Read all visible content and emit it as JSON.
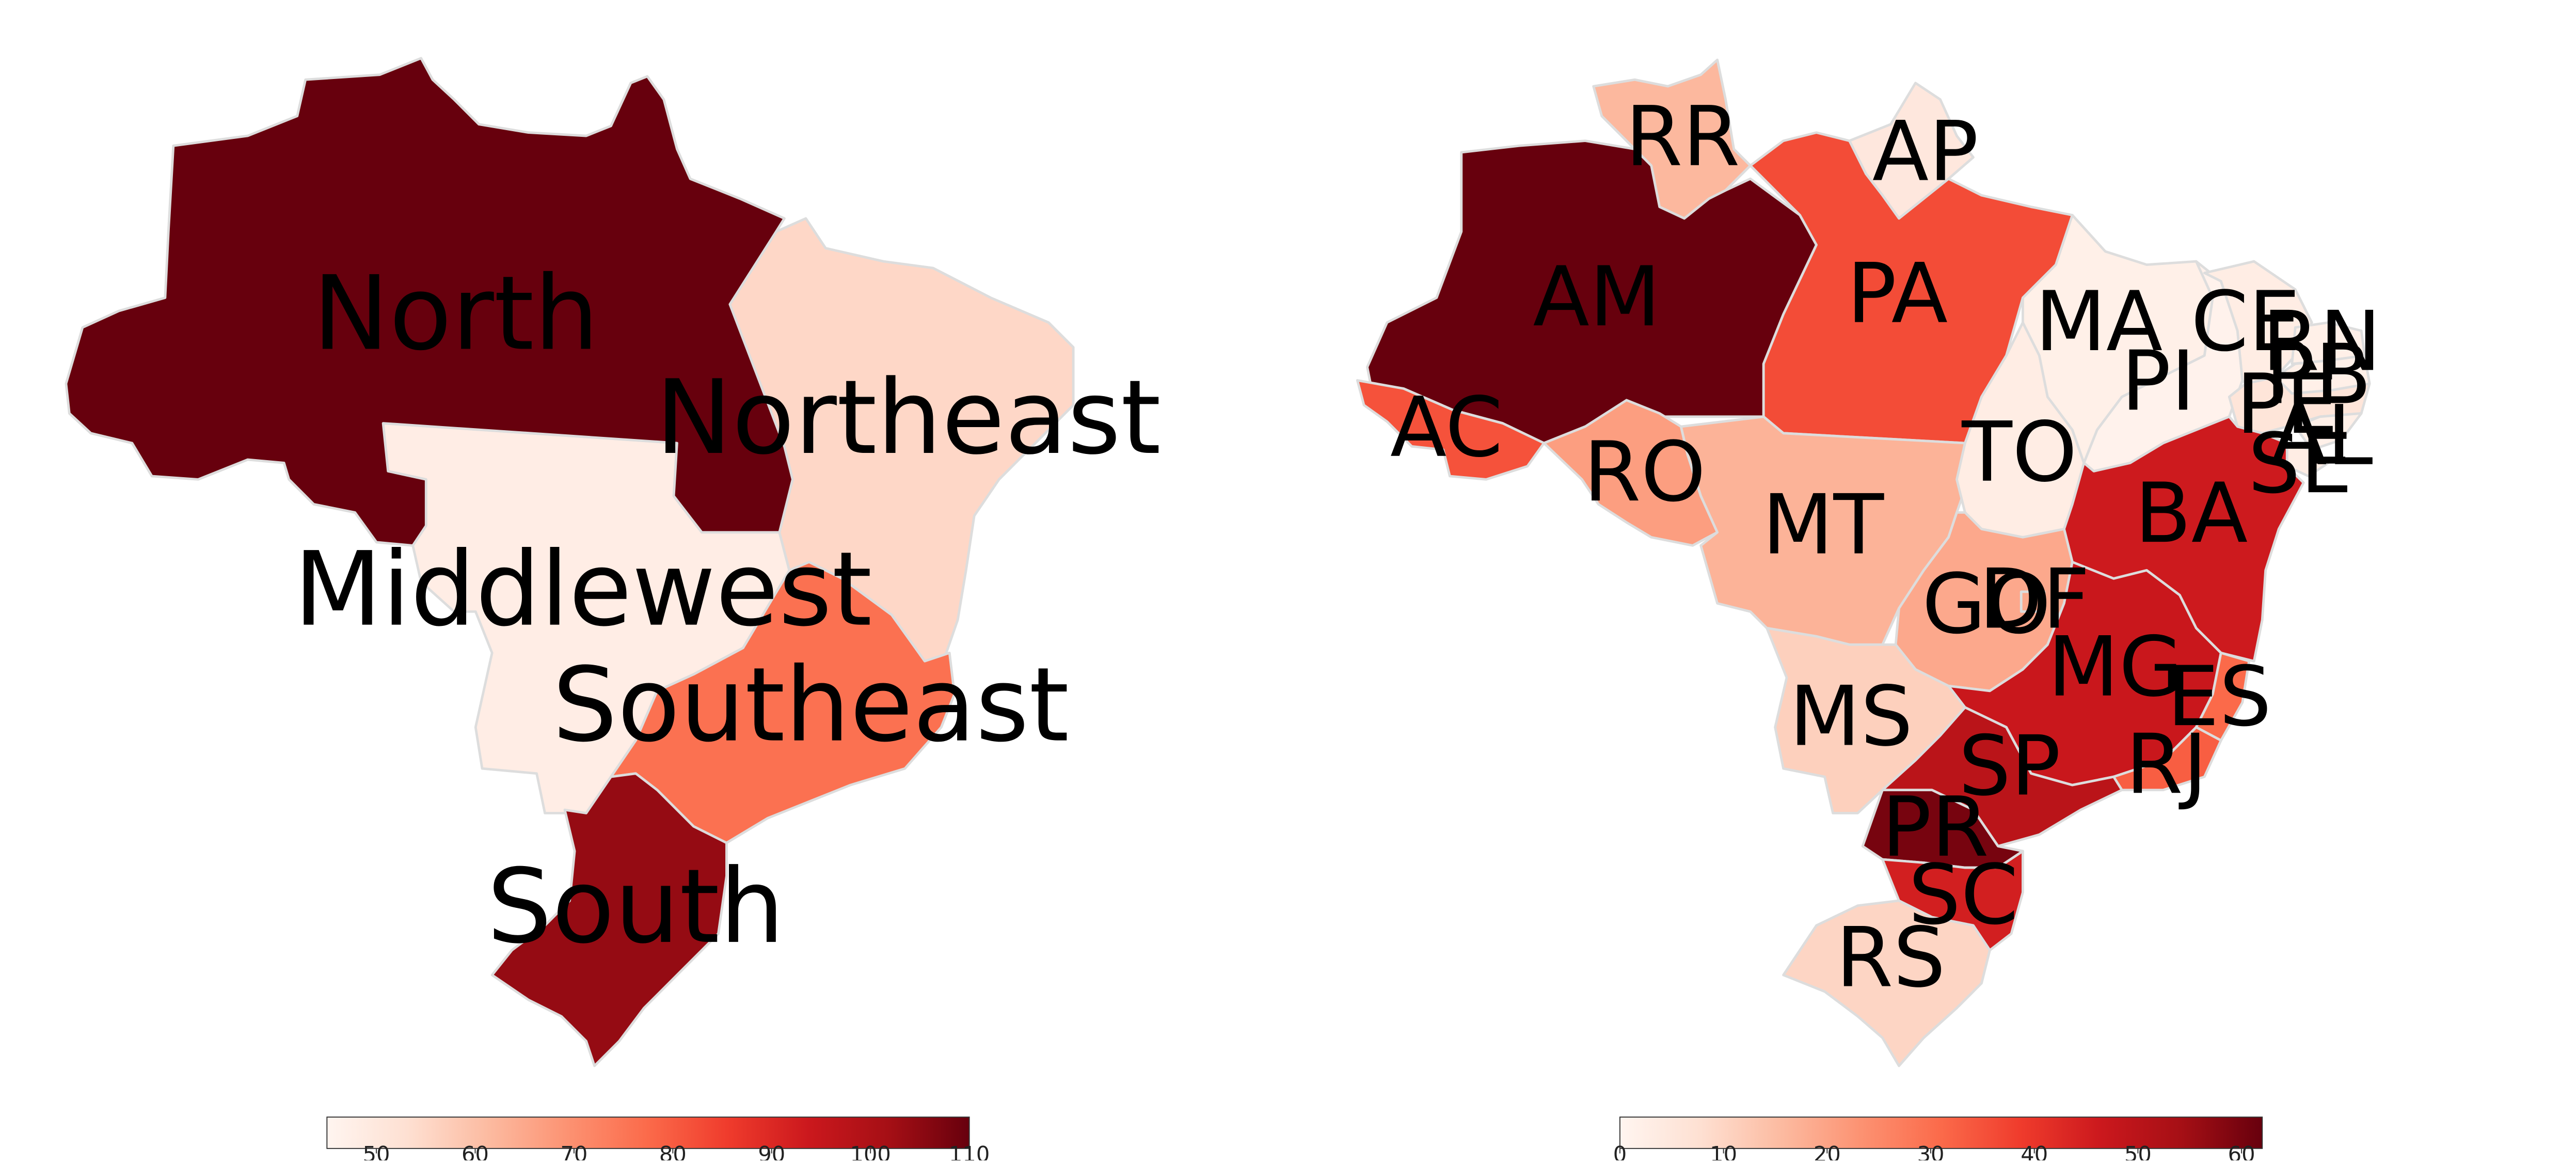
{
  "maps": [
    {
      "colorbar": {
        "min": 45,
        "max": 110,
        "ticks": [
          "50",
          "60",
          "70",
          "80",
          "90",
          "100",
          "110"
        ],
        "tick_values": [
          50,
          60,
          70,
          80,
          90,
          100,
          110
        ]
      },
      "regions": [
        {
          "id": "north",
          "label": "North",
          "value": 110
        },
        {
          "id": "northeast",
          "label": "Northeast",
          "value": 55
        },
        {
          "id": "middlewest",
          "label": "Middlewest",
          "value": 48
        },
        {
          "id": "southeast",
          "label": "Southeast",
          "value": 76
        },
        {
          "id": "south",
          "label": "South",
          "value": 104
        }
      ]
    },
    {
      "colorbar": {
        "min": 0,
        "max": 62,
        "ticks": [
          "0",
          "10",
          "20",
          "30",
          "40",
          "50",
          "60"
        ],
        "tick_values": [
          0,
          10,
          20,
          30,
          40,
          50,
          60
        ]
      },
      "states": [
        {
          "id": "RR",
          "label": "RR",
          "value": 16
        },
        {
          "id": "AP",
          "label": "AP",
          "value": 5
        },
        {
          "id": "AM",
          "label": "AM",
          "value": 62
        },
        {
          "id": "PA",
          "label": "PA",
          "value": 36
        },
        {
          "id": "AC",
          "label": "AC",
          "value": 35
        },
        {
          "id": "RO",
          "label": "RO",
          "value": 21
        },
        {
          "id": "MT",
          "label": "MT",
          "value": 17
        },
        {
          "id": "TO",
          "label": "TO",
          "value": 3
        },
        {
          "id": "MA",
          "label": "MA",
          "value": 2
        },
        {
          "id": "PI",
          "label": "PI",
          "value": 1
        },
        {
          "id": "CE",
          "label": "CE",
          "value": 3
        },
        {
          "id": "RN",
          "label": "RN",
          "value": 2
        },
        {
          "id": "PB",
          "label": "PB",
          "value": 2
        },
        {
          "id": "PE",
          "label": "PE",
          "value": 6
        },
        {
          "id": "AL",
          "label": "AL",
          "value": 2
        },
        {
          "id": "SE",
          "label": "SE",
          "value": 3
        },
        {
          "id": "BA",
          "label": "BA",
          "value": 46
        },
        {
          "id": "GO",
          "label": "GO",
          "value": 19
        },
        {
          "id": "DF",
          "label": "DF",
          "value": 19
        },
        {
          "id": "MG",
          "label": "MG",
          "value": 47
        },
        {
          "id": "ES",
          "label": "ES",
          "value": 31
        },
        {
          "id": "RJ",
          "label": "RJ",
          "value": 33
        },
        {
          "id": "MS",
          "label": "MS",
          "value": 11
        },
        {
          "id": "SP",
          "label": "SP",
          "value": 50
        },
        {
          "id": "PR",
          "label": "PR",
          "value": 60
        },
        {
          "id": "SC",
          "label": "SC",
          "value": 45
        },
        {
          "id": "RS",
          "label": "RS",
          "value": 10
        }
      ]
    }
  ],
  "colors": {
    "ramp": [
      "#fff5f0",
      "#fee0d2",
      "#fcbba1",
      "#fc9272",
      "#fb6a4a",
      "#ef3b2c",
      "#cb181d",
      "#a50f15",
      "#67000d"
    ],
    "border": "#dddddd"
  }
}
